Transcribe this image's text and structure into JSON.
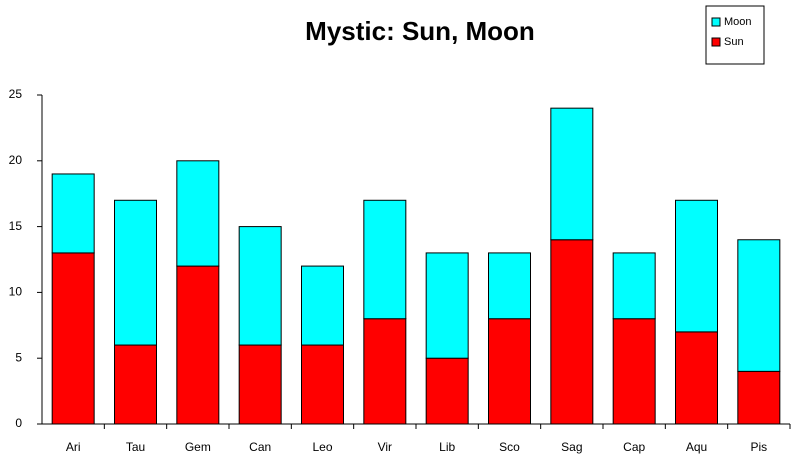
{
  "chart_data": {
    "type": "bar",
    "stacked": true,
    "title": "Mystic: Sun, Moon",
    "categories": [
      "Ari",
      "Tau",
      "Gem",
      "Can",
      "Leo",
      "Vir",
      "Lib",
      "Sco",
      "Sag",
      "Cap",
      "Aqu",
      "Pis"
    ],
    "series": [
      {
        "name": "Sun",
        "color": "#ff0000",
        "values": [
          13,
          6,
          12,
          6,
          6,
          8,
          5,
          8,
          14,
          8,
          7,
          4
        ]
      },
      {
        "name": "Moon",
        "color": "#00ffff",
        "values": [
          6,
          11,
          8,
          9,
          6,
          9,
          8,
          5,
          10,
          5,
          10,
          10
        ]
      }
    ],
    "ylim": [
      0,
      25
    ],
    "yticks": [
      0,
      5,
      10,
      15,
      20,
      25
    ],
    "grid": false,
    "legend": "top-right"
  }
}
